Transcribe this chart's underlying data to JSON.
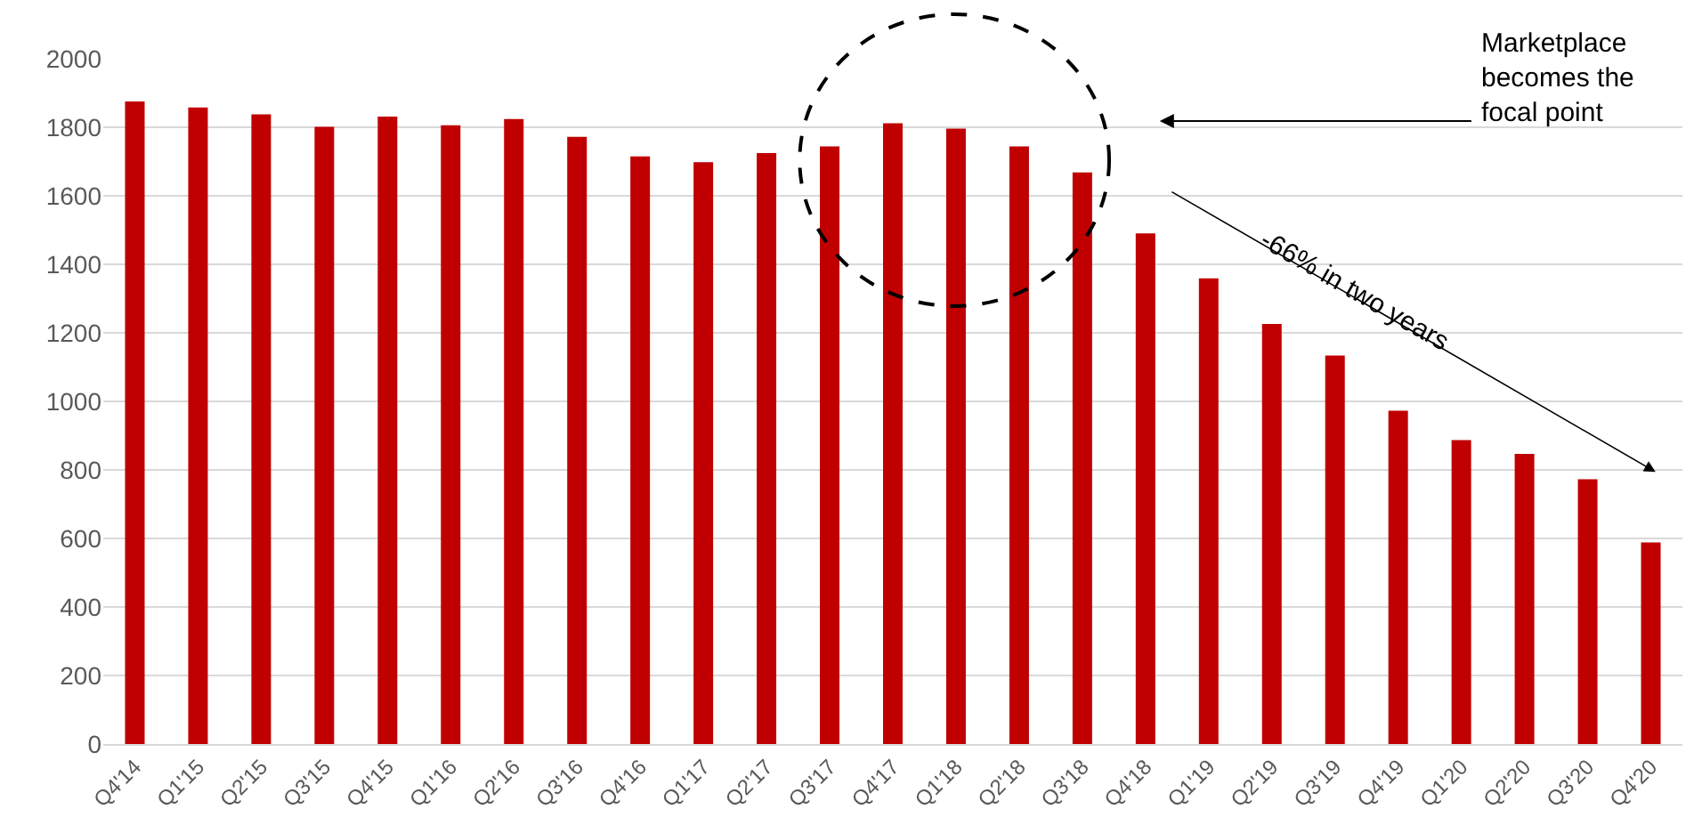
{
  "chart_data": {
    "type": "bar",
    "categories": [
      "Q4'14",
      "Q1'15",
      "Q2'15",
      "Q3'15",
      "Q4'15",
      "Q1'16",
      "Q2'16",
      "Q3'16",
      "Q4'16",
      "Q1'17",
      "Q2'17",
      "Q3'17",
      "Q4'17",
      "Q1'18",
      "Q2'18",
      "Q3'18",
      "Q4'18",
      "Q1'19",
      "Q2'19",
      "Q3'19",
      "Q4'19",
      "Q1'20",
      "Q2'20",
      "Q3'20",
      "Q4'20"
    ],
    "values": [
      1875,
      1858,
      1838,
      1801,
      1831,
      1806,
      1824,
      1772,
      1715,
      1698,
      1725,
      1744,
      1812,
      1796,
      1744,
      1668,
      1490,
      1359,
      1226,
      1134,
      973,
      887,
      847,
      773,
      588
    ],
    "color": "#c00000",
    "ylim": [
      0,
      2000
    ],
    "yticks": [
      0,
      200,
      400,
      600,
      800,
      1000,
      1200,
      1400,
      1600,
      1800,
      2000
    ],
    "grid": "y",
    "annotations": [
      "Marketplace becomes the focal point",
      "-66% in two years"
    ]
  }
}
